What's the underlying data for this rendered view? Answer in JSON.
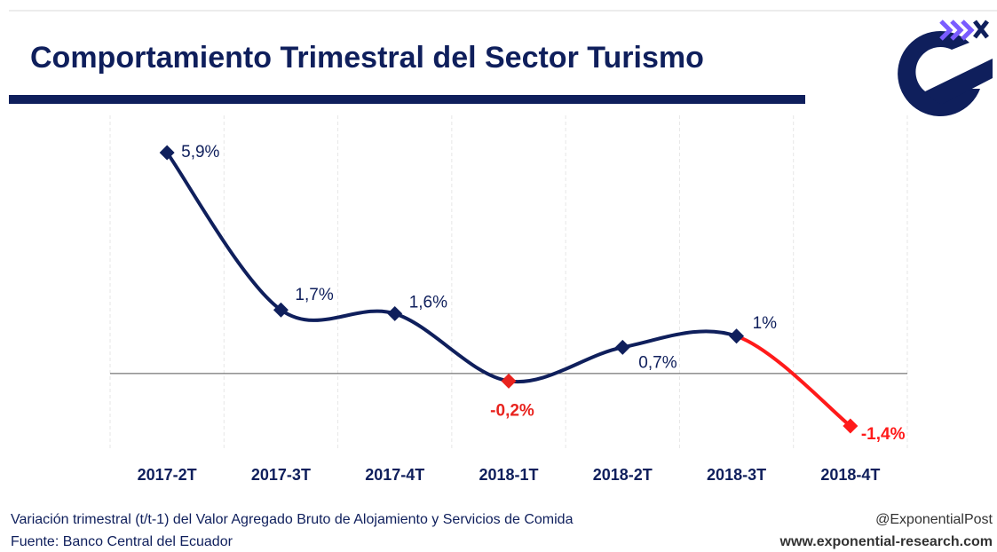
{
  "chart_data": {
    "type": "line",
    "title": "Comportamiento Trimestral del Sector Turismo",
    "categories": [
      "2017-2T",
      "2017-3T",
      "2017-4T",
      "2018-1T",
      "2018-2T",
      "2018-3T",
      "2018-4T"
    ],
    "values": [
      5.9,
      1.7,
      1.6,
      -0.2,
      0.7,
      1.0,
      -1.4
    ],
    "value_labels": [
      "5,9%",
      "1,7%",
      "1,6%",
      "-0,2%",
      "0,7%",
      "1%",
      "-1,4%"
    ],
    "color": "#0f1f5c",
    "marker_colors": [
      "#0f1f5c",
      "#0f1f5c",
      "#0f1f5c",
      "#e8231e",
      "#0f1f5c",
      "#0f1f5c",
      "#ff1a1a"
    ],
    "line_colors": [
      "#0f1f5c",
      "#0f1f5c",
      "#0f1f5c",
      "#0f1f5c",
      "#0f1f5c",
      "#ff1a1a"
    ],
    "note": "Variación trimestral (t/t-1) del Valor Agregado Bruto de Alojamiento y Servicios de Comida",
    "source": "Fuente: Banco Central del Ecuador",
    "handle": "@ExponentialPost",
    "website": "www.exponential-research.com"
  }
}
